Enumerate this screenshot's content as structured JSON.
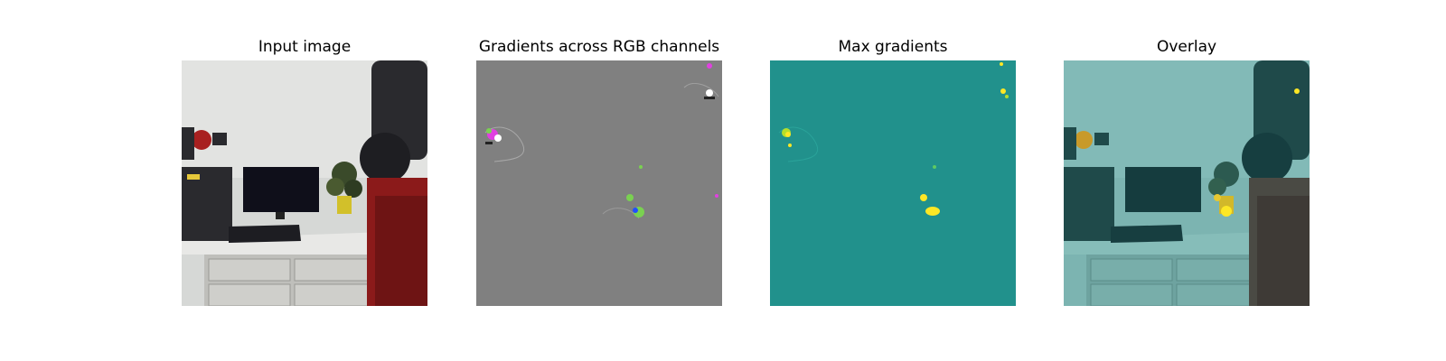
{
  "figure": {
    "panels": [
      {
        "title": "Input image"
      },
      {
        "title": "Gradients across RGB channels"
      },
      {
        "title": "Max gradients"
      },
      {
        "title": "Overlay"
      }
    ],
    "colors": {
      "background": "#ffffff",
      "gradient_gray": "#808080",
      "max_gradient_teal": "#21918c",
      "highlight_yellow": "#fde725",
      "highlight_green": "#7ad151",
      "highlight_magenta": "#e040e0",
      "robot_red": "#8b1a1a"
    },
    "icons": [
      "input-image-scene",
      "gradient-map",
      "max-gradient-map",
      "overlay-map"
    ]
  }
}
